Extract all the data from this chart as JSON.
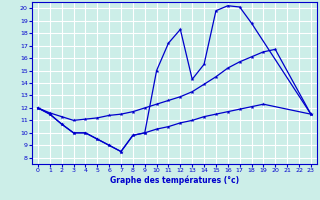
{
  "title": "Graphe des températures (°c)",
  "bg_color": "#cceee8",
  "grid_color": "#ffffff",
  "line_color": "#0000cc",
  "xlim": [
    -0.5,
    23.5
  ],
  "ylim": [
    7.5,
    20.5
  ],
  "xticks": [
    0,
    1,
    2,
    3,
    4,
    5,
    6,
    7,
    8,
    9,
    10,
    11,
    12,
    13,
    14,
    15,
    16,
    17,
    18,
    19,
    20,
    21,
    22,
    23
  ],
  "yticks": [
    8,
    9,
    10,
    11,
    12,
    13,
    14,
    15,
    16,
    17,
    18,
    19,
    20
  ],
  "line1_x": [
    0,
    1,
    2,
    3,
    4,
    5,
    6,
    7,
    8,
    9,
    10,
    11,
    12,
    13,
    14,
    15,
    16,
    17,
    18,
    23
  ],
  "line1_y": [
    12.0,
    11.5,
    10.7,
    10.0,
    10.0,
    9.5,
    9.0,
    8.5,
    9.8,
    10.0,
    15.0,
    17.2,
    18.3,
    14.3,
    15.5,
    19.8,
    20.2,
    20.1,
    18.8,
    11.5
  ],
  "line2_x": [
    0,
    1,
    2,
    3,
    4,
    5,
    6,
    7,
    8,
    9,
    10,
    11,
    12,
    13,
    14,
    15,
    16,
    17,
    18,
    19,
    20,
    23
  ],
  "line2_y": [
    12.0,
    11.6,
    11.3,
    11.0,
    11.1,
    11.2,
    11.4,
    11.5,
    11.7,
    12.0,
    12.3,
    12.6,
    12.9,
    13.3,
    13.9,
    14.5,
    15.2,
    15.7,
    16.1,
    16.5,
    16.7,
    11.5
  ],
  "line3_x": [
    0,
    1,
    2,
    3,
    4,
    5,
    6,
    7,
    8,
    9,
    10,
    11,
    12,
    13,
    14,
    15,
    16,
    17,
    18,
    19,
    23
  ],
  "line3_y": [
    12.0,
    11.5,
    10.7,
    10.0,
    10.0,
    9.5,
    9.0,
    8.5,
    9.8,
    10.0,
    10.3,
    10.5,
    10.8,
    11.0,
    11.3,
    11.5,
    11.7,
    11.9,
    12.1,
    12.3,
    11.5
  ]
}
